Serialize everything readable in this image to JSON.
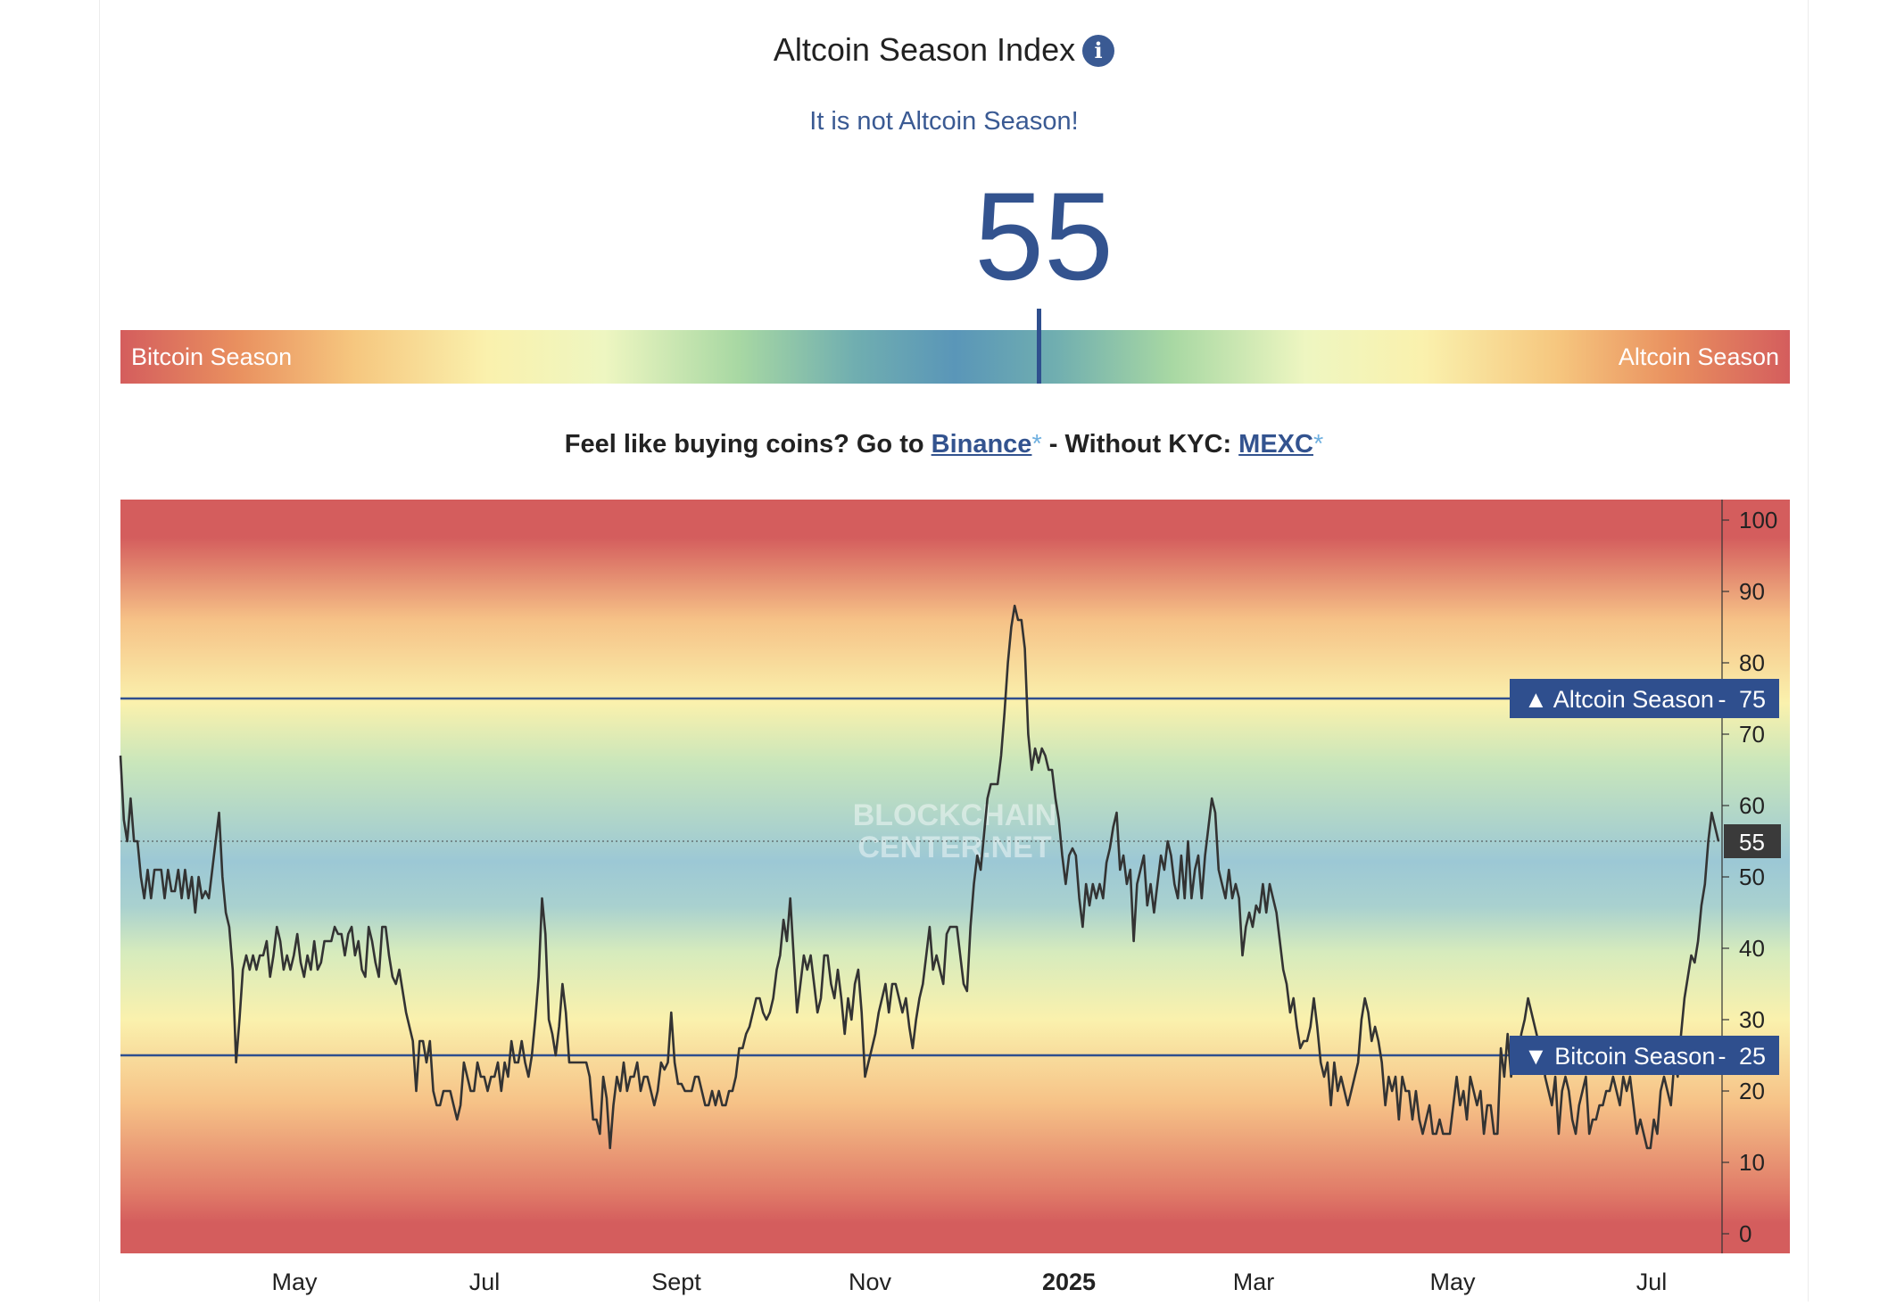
{
  "header": {
    "title": "Altcoin Season Index",
    "info_icon": "info-icon",
    "status_text": "It is not Altcoin Season!",
    "current_value": "55"
  },
  "gauge": {
    "left_label": "Bitcoin Season",
    "right_label": "Altcoin Season",
    "value": 55
  },
  "promo": {
    "prefix": "Feel like buying coins? Go to ",
    "link1": "Binance",
    "star": "*",
    "middle": " - Without KYC: ",
    "link2": "MEXC"
  },
  "colors": {
    "accent": "#33538f",
    "line": "#3a3a3a",
    "band_red": "#d45d5d",
    "band_blue": "#8fbfd0"
  },
  "chart_data": {
    "type": "line",
    "watermark": "BLOCKCHAIN CENTER.NET",
    "ylim": [
      0,
      100
    ],
    "y_ticks": [
      0,
      10,
      20,
      30,
      40,
      50,
      60,
      70,
      80,
      90,
      100
    ],
    "x_labels": [
      "May",
      "Jul",
      "Sept",
      "Nov",
      "2025",
      "Mar",
      "May",
      "Jul"
    ],
    "reference_lines": [
      {
        "label": "Altcoin Season",
        "value": 75,
        "symbol": "▲"
      },
      {
        "label": "Bitcoin Season",
        "value": 25,
        "symbol": "▼"
      }
    ],
    "current_value": 55,
    "series": [
      {
        "values": [
          67,
          58,
          55,
          61,
          55,
          55,
          50,
          47,
          51,
          47,
          51,
          51,
          51,
          47,
          51,
          48,
          48,
          51,
          47,
          51,
          47,
          50,
          45,
          50,
          47,
          48,
          47,
          51,
          55,
          59,
          50,
          45,
          43,
          37,
          24,
          30,
          37,
          39,
          37,
          39,
          37,
          39,
          39,
          41,
          36,
          39,
          43,
          41,
          37,
          39,
          37,
          39,
          42,
          38,
          36,
          39,
          37,
          41,
          37,
          38,
          41,
          41,
          41,
          43,
          42,
          42,
          39,
          42,
          43,
          39,
          41,
          37,
          36,
          43,
          41,
          38,
          36,
          43,
          43,
          39,
          36,
          35,
          37,
          34,
          31,
          29,
          27,
          20,
          27,
          27,
          24,
          27,
          20,
          18,
          18,
          20,
          20,
          20,
          18,
          16,
          18,
          24,
          22,
          20,
          20,
          24,
          22,
          22,
          20,
          22,
          22,
          24,
          20,
          24,
          22,
          27,
          24,
          24,
          27,
          24,
          22,
          25,
          30,
          36,
          47,
          42,
          30,
          28,
          25,
          29,
          35,
          31,
          24,
          24,
          24,
          24,
          24,
          24,
          22,
          16,
          16,
          14,
          22,
          19,
          12,
          18,
          22,
          20,
          24,
          20,
          22,
          22,
          24,
          20,
          22,
          22,
          20,
          18,
          20,
          24,
          23,
          24,
          31,
          24,
          21,
          21,
          20,
          20,
          20,
          22,
          22,
          20,
          18,
          18,
          20,
          18,
          20,
          18,
          18,
          20,
          20,
          22,
          26,
          26,
          28,
          29,
          31,
          33,
          33,
          31,
          30,
          31,
          33,
          37,
          39,
          44,
          41,
          47,
          39,
          31,
          35,
          39,
          37,
          39,
          35,
          31,
          33,
          39,
          39,
          35,
          33,
          37,
          33,
          28,
          33,
          30,
          35,
          37,
          31,
          22,
          24,
          26,
          28,
          31,
          33,
          35,
          31,
          35,
          35,
          33,
          31,
          33,
          29,
          26,
          30,
          33,
          35,
          39,
          43,
          37,
          39,
          37,
          35,
          42,
          43,
          43,
          43,
          39,
          35,
          34,
          43,
          49,
          53,
          51,
          56,
          61,
          63,
          63,
          63,
          67,
          73,
          80,
          85,
          88,
          86,
          86,
          82,
          70,
          65,
          68,
          66,
          68,
          67,
          65,
          65,
          61,
          58,
          53,
          49,
          53,
          54,
          53,
          47,
          43,
          49,
          46,
          49,
          47,
          49,
          47,
          52,
          54,
          57,
          59,
          51,
          53,
          49,
          51,
          41,
          49,
          51,
          53,
          46,
          49,
          45,
          49,
          53,
          51,
          55,
          53,
          49,
          47,
          53,
          47,
          55,
          47,
          51,
          53,
          47,
          53,
          57,
          61,
          59,
          51,
          49,
          47,
          51,
          47,
          49,
          47,
          39,
          43,
          45,
          43,
          46,
          45,
          49,
          45,
          49,
          47,
          45,
          41,
          37,
          35,
          31,
          33,
          29,
          26,
          27,
          27,
          29,
          33,
          29,
          24,
          22,
          24,
          18,
          24,
          20,
          22,
          20,
          18,
          20,
          22,
          24,
          30,
          33,
          31,
          27,
          29,
          27,
          24,
          18,
          22,
          20,
          22,
          16,
          22,
          20,
          20,
          16,
          20,
          16,
          14,
          16,
          18,
          14,
          14,
          16,
          14,
          14,
          14,
          18,
          22,
          18,
          20,
          16,
          22,
          20,
          18,
          20,
          14,
          18,
          18,
          14,
          14,
          26,
          22,
          28,
          22,
          26,
          24,
          28,
          30,
          33,
          31,
          29,
          27,
          27,
          22,
          20,
          18,
          22,
          14,
          20,
          22,
          20,
          16,
          14,
          18,
          20,
          22,
          14,
          16,
          16,
          18,
          18,
          20,
          20,
          22,
          20,
          18,
          22,
          20,
          22,
          18,
          14,
          16,
          14,
          12,
          12,
          16,
          14,
          20,
          22,
          20,
          18,
          24,
          22,
          28,
          33,
          36,
          39,
          38,
          41,
          46,
          49,
          55,
          59,
          57,
          55
        ]
      }
    ]
  }
}
